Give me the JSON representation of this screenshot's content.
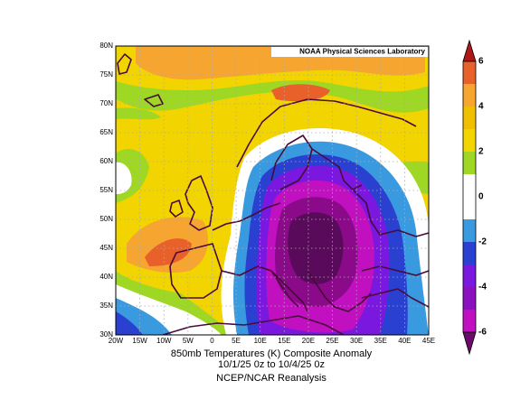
{
  "map": {
    "credit": "NOAA Physical Sciences Laboratory",
    "lat_labels": [
      "30N",
      "35N",
      "40N",
      "45N",
      "50N",
      "55N",
      "60N",
      "65N",
      "70N",
      "75N",
      "80N"
    ],
    "lon_labels": [
      "20W",
      "15W",
      "10W",
      "5W",
      "0",
      "5E",
      "10E",
      "15E",
      "20E",
      "25E",
      "30E",
      "35E",
      "40E",
      "45E"
    ],
    "title": "850mb Temperatures (K)   Composite Anomaly",
    "dates": "10/1/25 0z  to 10/4/25 0z",
    "source": "NCEP/NCAR Reanalysis"
  },
  "colorbar": {
    "labels": [
      6,
      4,
      2,
      0,
      -2,
      -4,
      -6
    ]
  }
}
